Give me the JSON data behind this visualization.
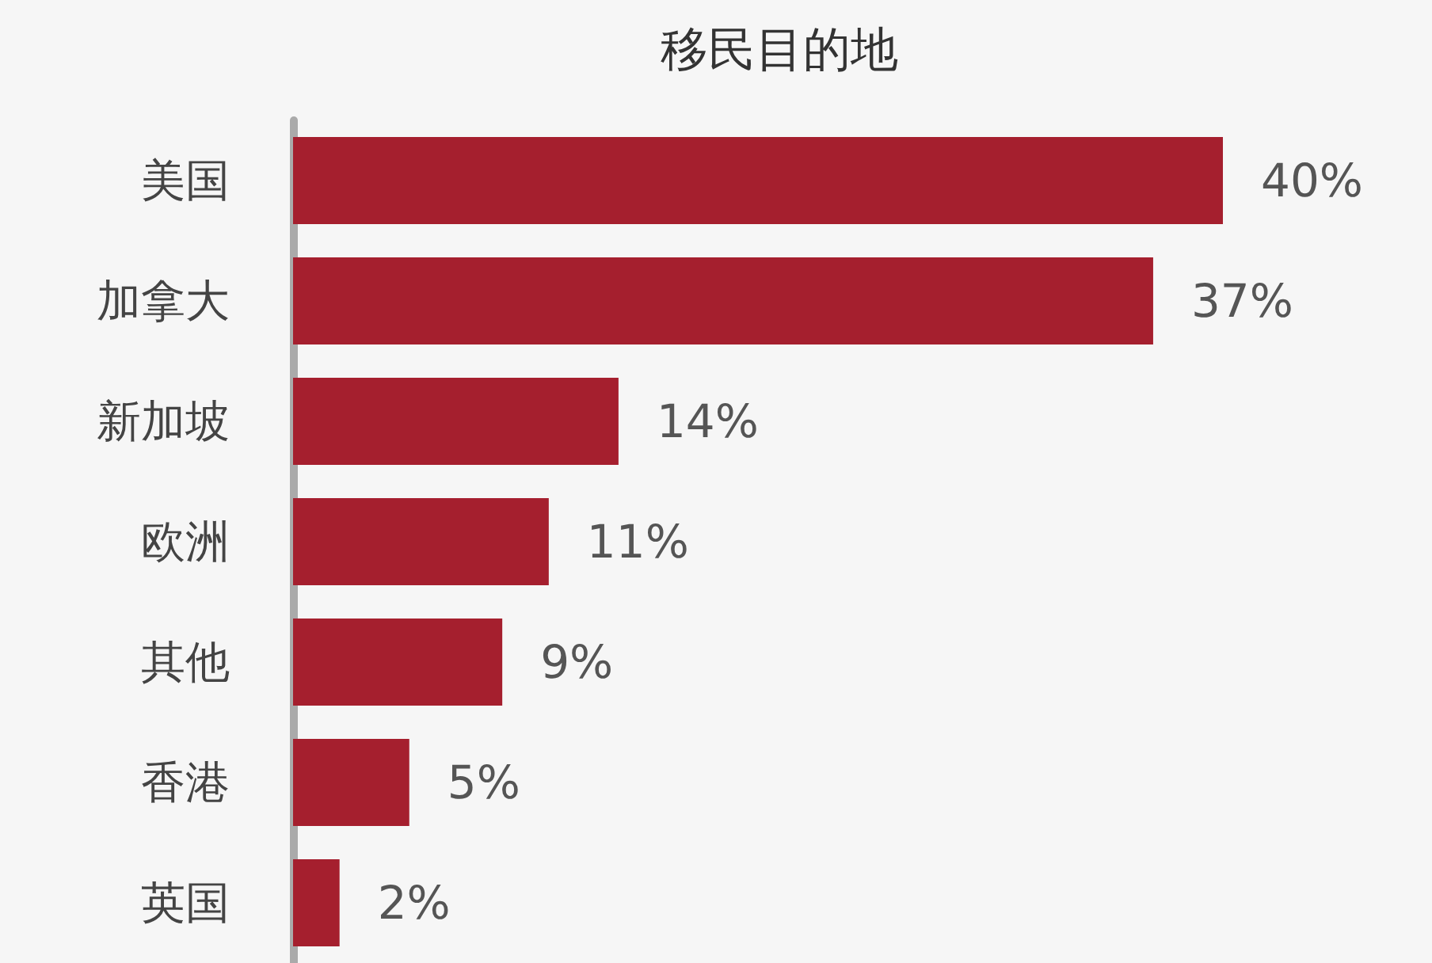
{
  "chart_data": {
    "type": "bar",
    "orientation": "horizontal",
    "title": "移民目的地",
    "categories": [
      "美国",
      "加拿大",
      "新加坡",
      "欧洲",
      "其他",
      "香港",
      "英国"
    ],
    "values": [
      40,
      37,
      14,
      11,
      9,
      5,
      2
    ],
    "value_labels": [
      "40%",
      "37%",
      "14%",
      "11%",
      "9%",
      "5%",
      "2%"
    ],
    "color": "#a51f2e"
  }
}
